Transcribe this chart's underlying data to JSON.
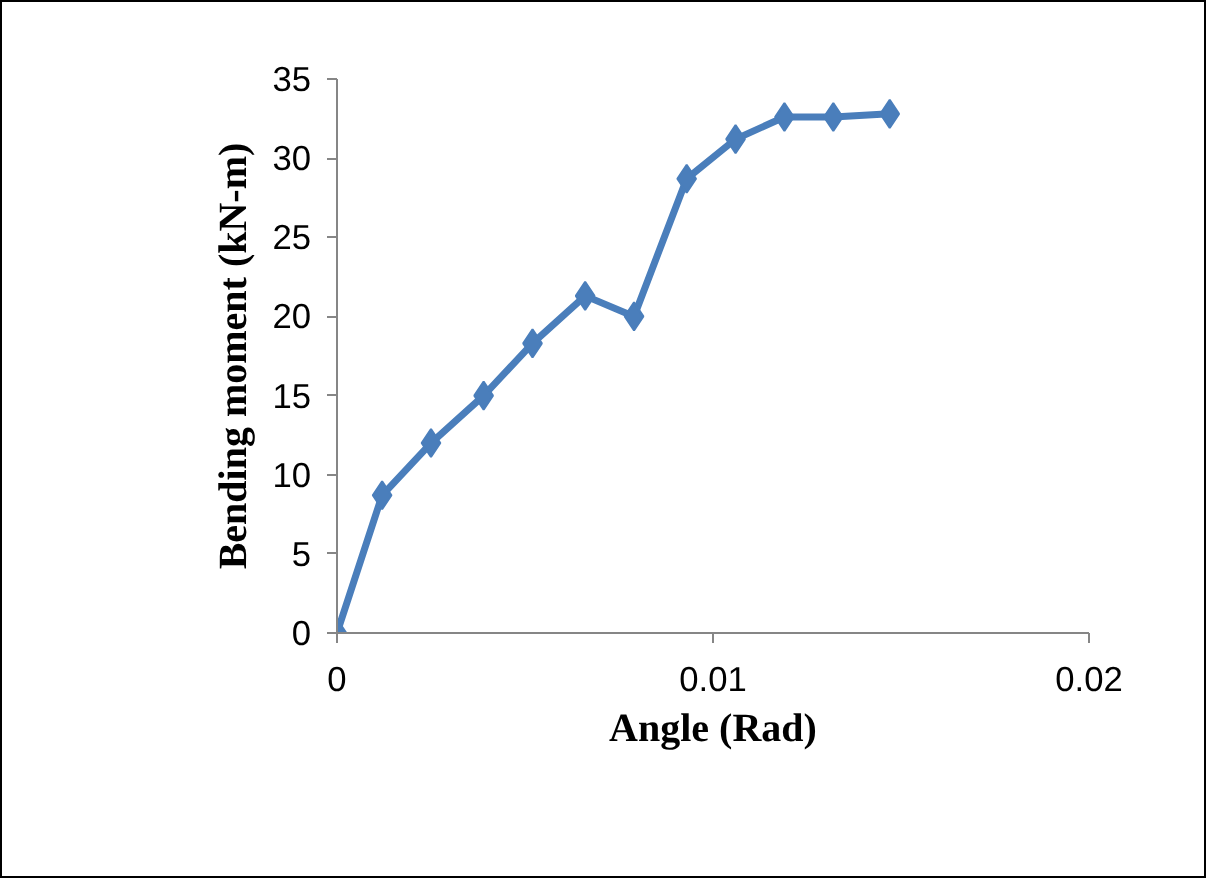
{
  "chart_data": {
    "type": "line",
    "xlabel": "Angle (Rad)",
    "ylabel": "Bending moment (kN-m)",
    "x": [
      0,
      0.0012,
      0.0025,
      0.0039,
      0.0052,
      0.0066,
      0.0079,
      0.0093,
      0.0106,
      0.0119,
      0.0132,
      0.0147
    ],
    "series": [
      {
        "color": "#4a7ebb",
        "values": [
          0,
          8.7,
          12.0,
          15.0,
          18.3,
          21.3,
          20.0,
          28.7,
          31.2,
          32.6,
          32.6,
          32.8
        ]
      }
    ],
    "xlim": [
      0,
      0.02
    ],
    "xticks": [
      0,
      0.01,
      0.02
    ],
    "ylim": [
      0,
      35
    ],
    "yticks": [
      0,
      5,
      10,
      15,
      20,
      25,
      30,
      35
    ],
    "grid": false,
    "marker": "diamond",
    "line_style": "solid"
  }
}
